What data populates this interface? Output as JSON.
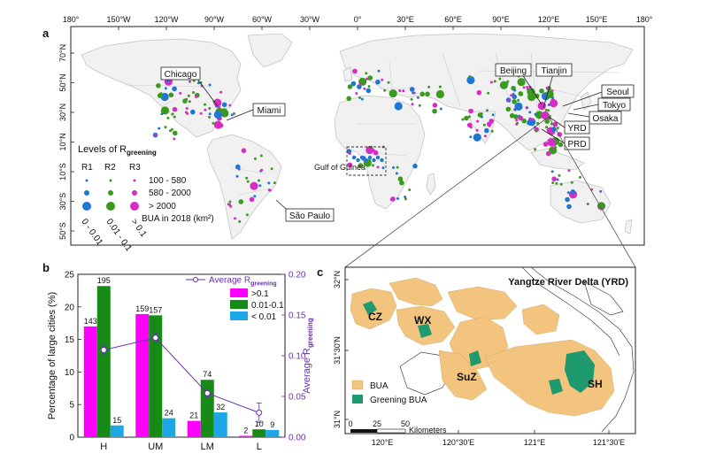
{
  "panel_a": {
    "label": "a",
    "lon_ticks_top": [
      "180°",
      "150°W",
      "120°W",
      "90°W",
      "60°W",
      "30°W",
      "0°",
      "30°E",
      "60°E",
      "90°E",
      "120°E",
      "150°E",
      "180°"
    ],
    "lat_ticks": [
      "70°N",
      "50°N",
      "30°N",
      "10°N",
      "10°S",
      "30°S",
      "50°S"
    ],
    "city_callouts": [
      "Chicago",
      "Miami",
      "São Paulo",
      "Gulf of Guinea",
      "Beijing",
      "Tianjin",
      "Seoul",
      "Tokyo",
      "Osaka",
      "YRD",
      "PRD"
    ],
    "legend": {
      "title_prefix": "Levels of R",
      "title_sub": "greening",
      "col_heads": [
        "R1",
        "R2",
        "R3"
      ],
      "size_labels": [
        "100 - 580",
        "580 - 2000",
        "> 2000"
      ],
      "size_title": "BUA in 2018 (km²)",
      "range_labels": [
        "0 - 0.01",
        "0.01 - 0.1",
        "> 0.1"
      ]
    },
    "colors": {
      "R1": "#1f77d4",
      "R2": "#3a9a1e",
      "R3": "#d62bc4",
      "land": "#f0f0f0",
      "border": "#c8c8c8"
    }
  },
  "panel_b": {
    "label": "b"
  },
  "panel_c": {
    "label": "c",
    "title": "Yangtze River Delta (YRD)",
    "lat_ticks": [
      "32°N",
      "31°30'N",
      "31°N"
    ],
    "lon_ticks": [
      "120°E",
      "120°30'E",
      "121°E",
      "121°30'E"
    ],
    "city_labels": [
      "CZ",
      "WX",
      "SuZ",
      "SH"
    ],
    "legend_bua": "BUA",
    "legend_greening": "Greening BUA",
    "scale_labels": [
      "0",
      "25",
      "50"
    ],
    "scale_unit": "Kilometers",
    "colors": {
      "bua": "#f2c47e",
      "greening": "#1f9a6e",
      "line": "#444444"
    }
  },
  "chart_data": {
    "type": "bar",
    "categories": [
      "H",
      "UM",
      "LM",
      "L"
    ],
    "ylabel": "Percentage of large cities (%)",
    "ylim": [
      0,
      25
    ],
    "yticks": [
      0,
      5,
      10,
      15,
      20,
      25
    ],
    "y2label_prefix": "Average R",
    "y2label_sub": "greening",
    "y2lim": [
      0,
      0.2
    ],
    "y2ticks": [
      "0.00",
      "0.05",
      "0.10",
      "0.15",
      "0.20"
    ],
    "series": [
      {
        "name": ">0.1",
        "color": "#ff00ff",
        "values": [
          17.0,
          18.9,
          2.5,
          0.2
        ],
        "labels": [
          "143",
          "159",
          "21",
          "2"
        ]
      },
      {
        "name": "0.01-0.1",
        "color": "#168c16",
        "values": [
          23.2,
          18.7,
          8.8,
          1.2
        ],
        "labels": [
          "195",
          "157",
          "74",
          "10"
        ]
      },
      {
        "name": "< 0.01",
        "color": "#1ea7e6",
        "values": [
          1.8,
          2.9,
          3.8,
          1.1
        ],
        "labels": [
          "15",
          "24",
          "32",
          "9"
        ]
      }
    ],
    "line": {
      "name_prefix": "Average R",
      "name_sub": "greening",
      "color": "#6a2fb0",
      "values": [
        0.107,
        0.122,
        0.054,
        0.03
      ],
      "errors": [
        0.006,
        0.006,
        0.005,
        0.012
      ]
    },
    "legend_position": "top-right"
  }
}
